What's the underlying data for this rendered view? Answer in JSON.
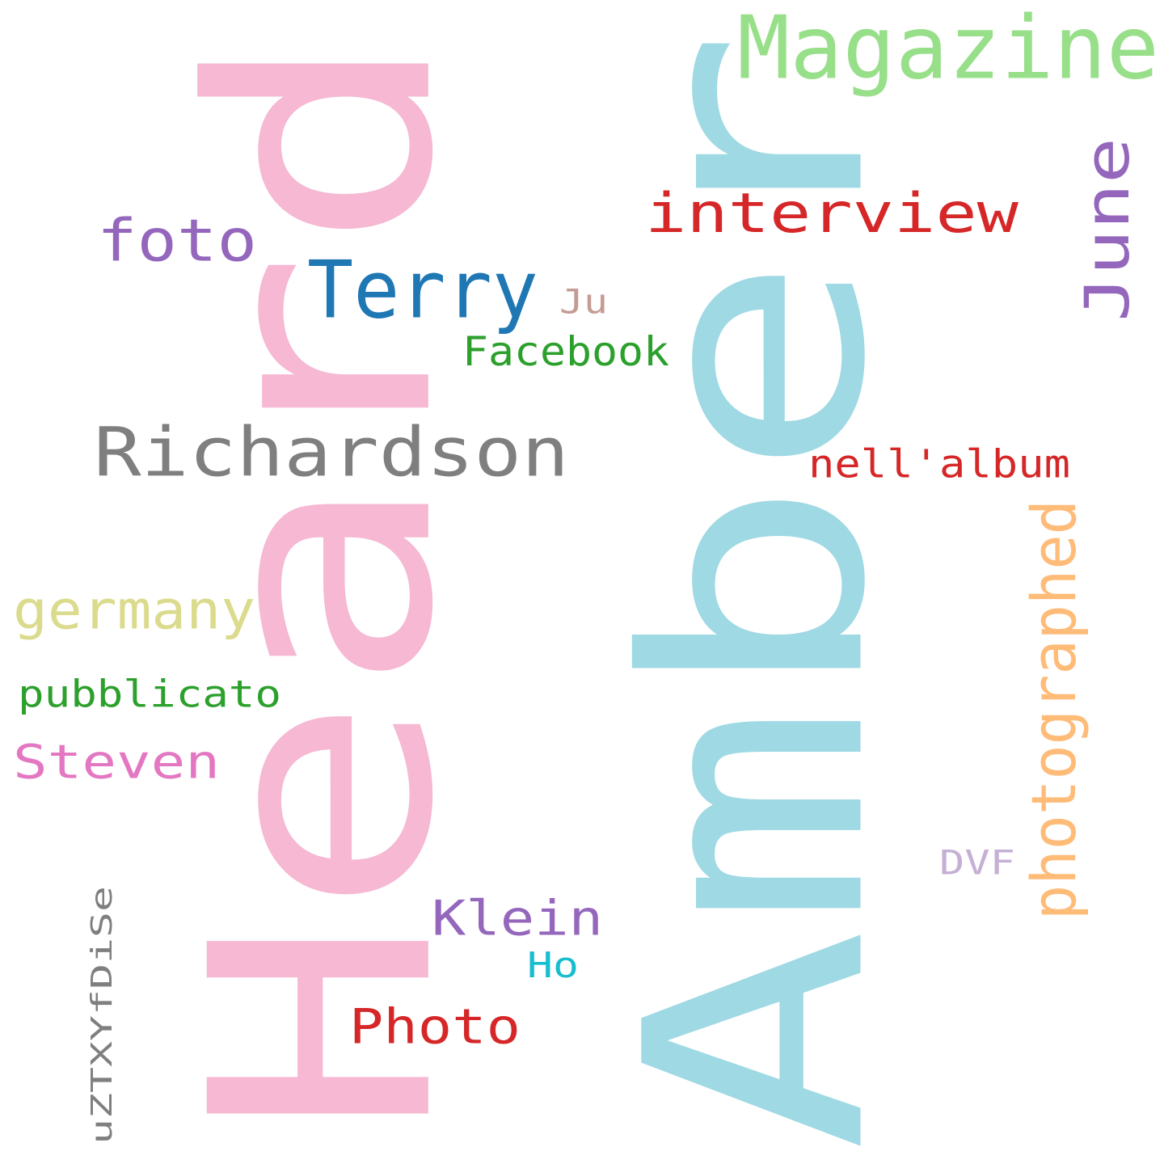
{
  "words": [
    {
      "text": "Amber",
      "color": "#9fd9e4",
      "rotated": true
    },
    {
      "text": "Heard",
      "color": "#f6b8d2",
      "rotated": true
    },
    {
      "text": "Magazine",
      "color": "#98df8a",
      "rotated": false
    },
    {
      "text": "interview",
      "color": "#d62728",
      "rotated": false
    },
    {
      "text": "June",
      "color": "#9467bd",
      "rotated": true
    },
    {
      "text": "foto",
      "color": "#9467bd",
      "rotated": false
    },
    {
      "text": "Terry",
      "color": "#1f77b4",
      "rotated": false
    },
    {
      "text": "Ju",
      "color": "#c49c94",
      "rotated": false
    },
    {
      "text": "Facebook",
      "color": "#2ca02c",
      "rotated": false
    },
    {
      "text": "Richardson",
      "color": "#7f7f7f",
      "rotated": false
    },
    {
      "text": "nell'album",
      "color": "#d62728",
      "rotated": false
    },
    {
      "text": "photographed",
      "color": "#ffbb78",
      "rotated": true
    },
    {
      "text": "germany",
      "color": "#dbdb8d",
      "rotated": false
    },
    {
      "text": "pubblicato",
      "color": "#2ca02c",
      "rotated": false
    },
    {
      "text": "Steven",
      "color": "#e377c2",
      "rotated": false
    },
    {
      "text": "DVF",
      "color": "#c5b0d5",
      "rotated": false
    },
    {
      "text": "uZTXYfDiSe",
      "color": "#7f7f7f",
      "rotated": true
    },
    {
      "text": "Klein",
      "color": "#9467bd",
      "rotated": false
    },
    {
      "text": "Ho",
      "color": "#17becf",
      "rotated": false
    },
    {
      "text": "Photo",
      "color": "#d62728",
      "rotated": false
    }
  ]
}
